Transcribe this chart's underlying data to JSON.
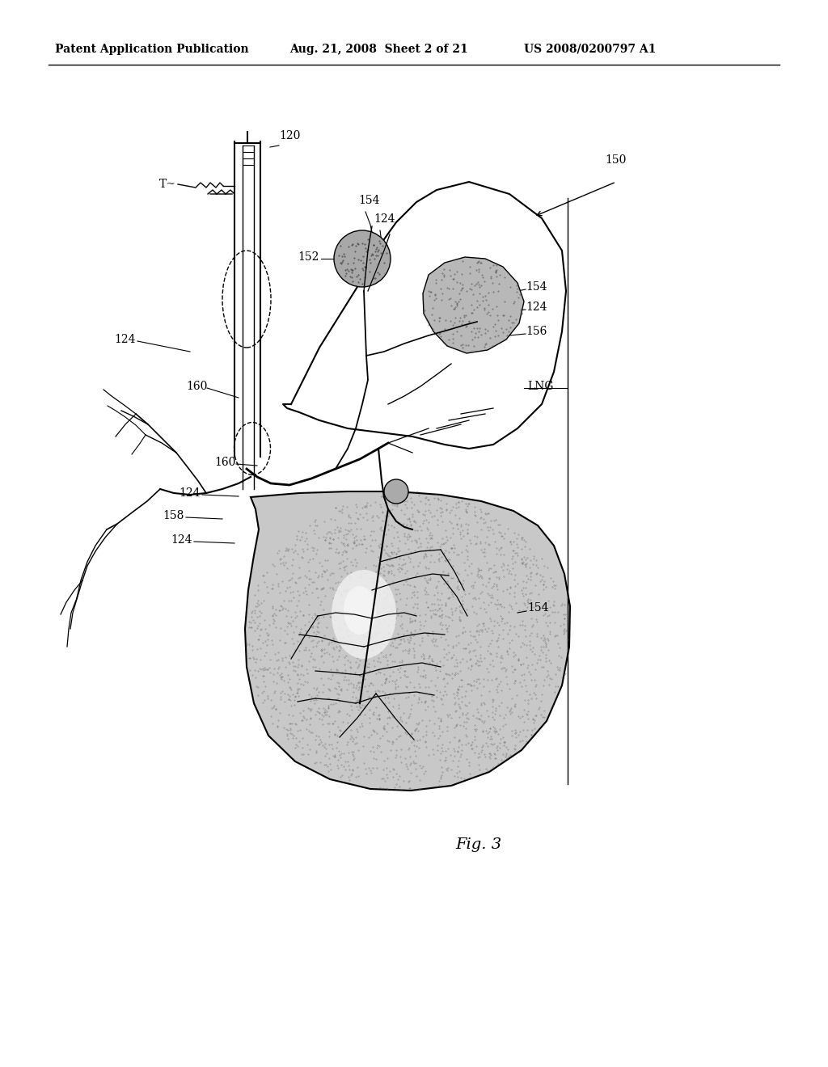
{
  "bg_color": "#ffffff",
  "header_left": "Patent Application Publication",
  "header_mid": "Aug. 21, 2008  Sheet 2 of 21",
  "header_right": "US 2008/0200797 A1",
  "fig_label": "Fig. 3",
  "line_color": "#000000",
  "stipple_color": "#888888",
  "shading_light": "#d0d0d0",
  "shading_dark": "#b0b0b0"
}
